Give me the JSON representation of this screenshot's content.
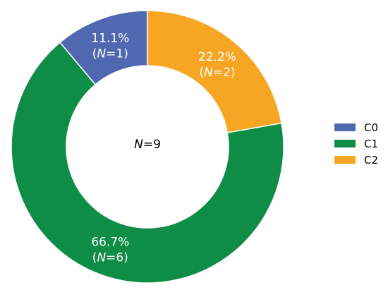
{
  "chart_data": {
    "type": "pie",
    "categories": [
      "C0",
      "C1",
      "C2"
    ],
    "values": [
      1,
      6,
      2
    ],
    "percentages": [
      "11.1%",
      "66.7%",
      "22.2%"
    ],
    "counts": [
      "1",
      "6",
      "2"
    ],
    "total_label": "N=9",
    "total": "9",
    "colors": [
      "#5068b0",
      "#0f8c45",
      "#f6a623"
    ],
    "legend_position": "right",
    "donut": true
  }
}
